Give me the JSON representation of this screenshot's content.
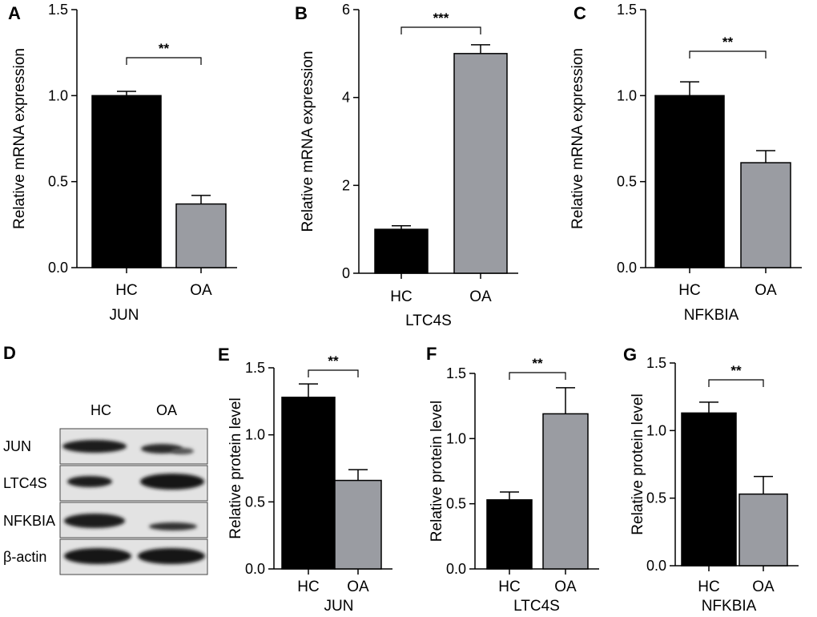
{
  "chart_data": [
    {
      "panel": "A",
      "type": "bar",
      "categories": [
        "HC",
        "OA"
      ],
      "values": [
        1.0,
        0.37
      ],
      "errors": [
        0.025,
        0.05
      ],
      "colors": [
        "#000000",
        "#9a9ca2"
      ],
      "ylabel": "Relative mRNA expression",
      "xlabel": "JUN",
      "ylim": [
        0,
        1.5
      ],
      "yticks": [
        "0.0",
        "0.5",
        "1.0",
        "1.5"
      ],
      "significance": "**"
    },
    {
      "panel": "B",
      "type": "bar",
      "categories": [
        "HC",
        "OA"
      ],
      "values": [
        1.0,
        5.0
      ],
      "errors": [
        0.08,
        0.2
      ],
      "colors": [
        "#000000",
        "#9a9ca2"
      ],
      "ylabel": "Relative mRNA expression",
      "xlabel": "LTC4S",
      "ylim": [
        0,
        6
      ],
      "yticks": [
        "0",
        "2",
        "4",
        "6"
      ],
      "significance": "***"
    },
    {
      "panel": "C",
      "type": "bar",
      "categories": [
        "HC",
        "OA"
      ],
      "values": [
        1.0,
        0.61
      ],
      "errors": [
        0.08,
        0.07
      ],
      "colors": [
        "#000000",
        "#9a9ca2"
      ],
      "ylabel": "Relative mRNA expression",
      "xlabel": "NFKBIA",
      "ylim": [
        0,
        1.5
      ],
      "yticks": [
        "0.0",
        "0.5",
        "1.0",
        "1.5"
      ],
      "significance": "**"
    },
    {
      "panel": "E",
      "type": "bar",
      "categories": [
        "HC",
        "OA"
      ],
      "values": [
        1.28,
        0.66
      ],
      "errors": [
        0.1,
        0.08
      ],
      "colors": [
        "#000000",
        "#9a9ca2"
      ],
      "ylabel": "Relative protein level",
      "xlabel": "JUN",
      "ylim": [
        0,
        1.5
      ],
      "yticks": [
        "0.0",
        "0.5",
        "1.0",
        "1.5"
      ],
      "significance": "**"
    },
    {
      "panel": "F",
      "type": "bar",
      "categories": [
        "HC",
        "OA"
      ],
      "values": [
        0.53,
        1.19
      ],
      "errors": [
        0.06,
        0.2
      ],
      "colors": [
        "#000000",
        "#9a9ca2"
      ],
      "ylabel": "Relative protein level",
      "xlabel": "LTC4S",
      "ylim": [
        0,
        1.5
      ],
      "yticks": [
        "0.0",
        "0.5",
        "1.0",
        "1.5"
      ],
      "significance": "**"
    },
    {
      "panel": "G",
      "type": "bar",
      "categories": [
        "HC",
        "OA"
      ],
      "values": [
        1.13,
        0.53
      ],
      "errors": [
        0.08,
        0.13
      ],
      "colors": [
        "#000000",
        "#9a9ca2"
      ],
      "ylabel": "Relative protein level",
      "xlabel": "NFKBIA",
      "ylim": [
        0,
        1.5
      ],
      "yticks": [
        "0.0",
        "0.5",
        "1.0",
        "1.5"
      ],
      "significance": "**"
    }
  ],
  "blot": {
    "panel": "D",
    "columns": [
      "HC",
      "OA"
    ],
    "rows": [
      "JUN",
      "LTC4S",
      "NFKBIA",
      "β-actin"
    ]
  }
}
